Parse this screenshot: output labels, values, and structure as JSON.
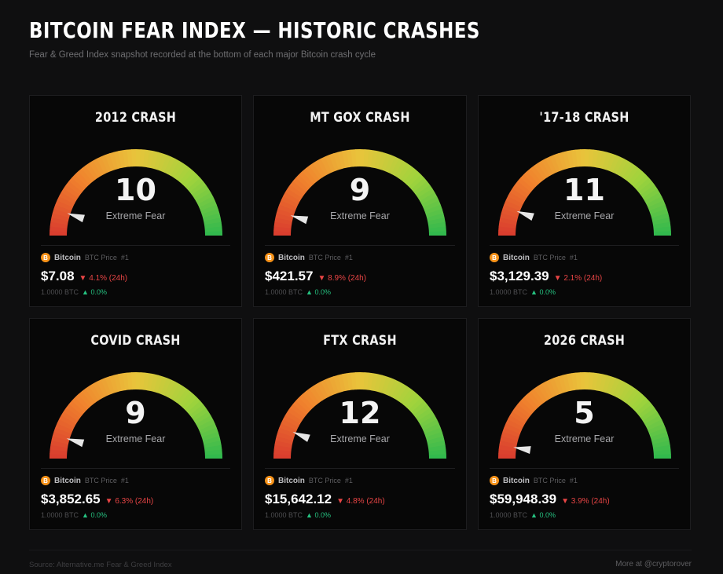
{
  "header": {
    "title": "BITCOIN FEAR INDEX — HISTORIC CRASHES",
    "subtitle": "Fear & Greed Index snapshot recorded at the bottom of each major Bitcoin crash cycle"
  },
  "gauge_colors": {
    "low": "#d93b2e",
    "mid_low": "#f0822d",
    "mid": "#e9c43b",
    "mid_high": "#9fd33c",
    "high": "#2fb84e",
    "needle": "#e6e6e6"
  },
  "cards": [
    {
      "title": "2012 CRASH",
      "score": "10",
      "score_value": 10,
      "label": "Extreme Fear",
      "coin": "Bitcoin",
      "price_label": "BTC Price",
      "rank": "#1",
      "coin_icon": "bitcoin-icon",
      "price": "$7.08",
      "change": "▼ 4.1% (24h)",
      "btc_amount": "1.0000 BTC",
      "btc_change": "▲ 0.0%"
    },
    {
      "title": "MT GOX CRASH",
      "score": "9",
      "score_value": 9,
      "label": "Extreme Fear",
      "coin": "Bitcoin",
      "price_label": "BTC Price",
      "rank": "#1",
      "coin_icon": "bitcoin-icon",
      "price": "$421.57",
      "change": "▼ 8.9% (24h)",
      "btc_amount": "1.0000 BTC",
      "btc_change": "▲ 0.0%"
    },
    {
      "title": "'17-18 CRASH",
      "score": "11",
      "score_value": 11,
      "label": "Extreme Fear",
      "coin": "Bitcoin",
      "price_label": "BTC Price",
      "rank": "#1",
      "coin_icon": "bitcoin-icon",
      "price": "$3,129.39",
      "change": "▼ 2.1% (24h)",
      "btc_amount": "1.0000 BTC",
      "btc_change": "▲ 0.0%"
    },
    {
      "title": "COVID CRASH",
      "score": "9",
      "score_value": 9,
      "label": "Extreme Fear",
      "coin": "Bitcoin",
      "price_label": "BTC Price",
      "rank": "#1",
      "coin_icon": "bitcoin-icon",
      "price": "$3,852.65",
      "change": "▼ 6.3% (24h)",
      "btc_amount": "1.0000 BTC",
      "btc_change": "▲ 0.0%"
    },
    {
      "title": "FTX CRASH",
      "score": "12",
      "score_value": 12,
      "label": "Extreme Fear",
      "coin": "Bitcoin",
      "price_label": "BTC Price",
      "rank": "#1",
      "coin_icon": "bitcoin-icon",
      "price": "$15,642.12",
      "change": "▼ 4.8% (24h)",
      "btc_amount": "1.0000 BTC",
      "btc_change": "▲ 0.0%"
    },
    {
      "title": "2026 CRASH",
      "score": "5",
      "score_value": 5,
      "label": "Extreme Fear",
      "coin": "Bitcoin",
      "price_label": "BTC Price",
      "rank": "#1",
      "coin_icon": "bitcoin-icon",
      "price": "$59,948.39",
      "change": "▼ 3.9% (24h)",
      "btc_amount": "1.0000 BTC",
      "btc_change": "▲ 0.0%"
    }
  ],
  "footer": {
    "source": "Source: Alternative.me Fear & Greed Index",
    "more": "More at @cryptorover"
  }
}
